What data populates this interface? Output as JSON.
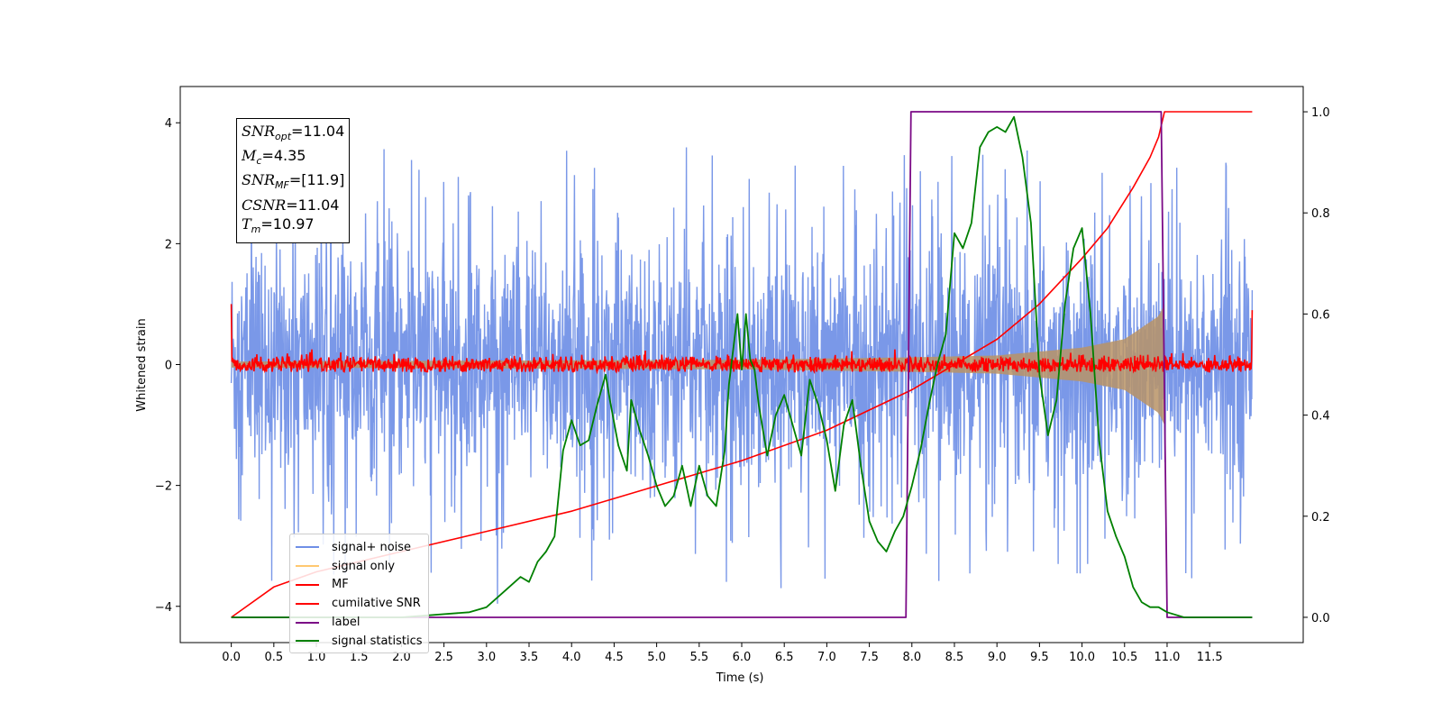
{
  "chart_data": {
    "type": "line",
    "title": "",
    "xlabel": "Time (s)",
    "ylabel": "Whitened strain",
    "xlim": [
      -0.6,
      12.6
    ],
    "ylim_left": [
      -4.6,
      4.6
    ],
    "ylim_right": [
      -0.05,
      1.05
    ],
    "xticks": [
      0.0,
      0.5,
      1.0,
      1.5,
      2.0,
      2.5,
      3.0,
      3.5,
      4.0,
      4.5,
      5.0,
      5.5,
      6.0,
      6.5,
      7.0,
      7.5,
      8.0,
      8.5,
      9.0,
      9.5,
      10.0,
      10.5,
      11.0,
      11.5
    ],
    "xtick_labels": [
      "0.0",
      "0.5",
      "1.0",
      "1.5",
      "2.0",
      "2.5",
      "3.0",
      "3.5",
      "4.0",
      "4.5",
      "5.0",
      "5.5",
      "6.0",
      "6.5",
      "7.0",
      "7.5",
      "8.0",
      "8.5",
      "9.0",
      "9.5",
      "10.0",
      "10.5",
      "11.0",
      "11.5"
    ],
    "yticks_left": [
      -4,
      -2,
      0,
      2,
      4
    ],
    "ytick_labels_left": [
      "−4",
      "−2",
      "0",
      "2",
      "4"
    ],
    "yticks_right": [
      0.0,
      0.2,
      0.4,
      0.6,
      0.8,
      1.0
    ],
    "ytick_labels_right": [
      "0.0",
      "0.2",
      "0.4",
      "0.6",
      "0.8",
      "1.0"
    ],
    "grid": false,
    "legend_position": "lower-left",
    "series": [
      {
        "name": "signal+ noise",
        "color": "#6f8fe6",
        "axis": "left",
        "style": "noise",
        "x_range": [
          0,
          12
        ],
        "amplitude_typical": 1.2,
        "amplitude_peak": 4.15
      },
      {
        "name": "signal only",
        "color": "#ffc870",
        "axis": "left",
        "style": "chirp",
        "x_range": [
          0,
          11
        ],
        "envelope": [
          [
            0,
            0.05
          ],
          [
            6,
            0.08
          ],
          [
            8,
            0.12
          ],
          [
            9,
            0.15
          ],
          [
            10,
            0.28
          ],
          [
            10.5,
            0.42
          ],
          [
            10.9,
            0.8
          ],
          [
            10.97,
            1.0
          ]
        ]
      },
      {
        "name": "MF",
        "color": "#ff0000",
        "axis": "left",
        "style": "noise",
        "x_range": [
          0,
          12
        ],
        "amplitude_typical": 0.07,
        "amplitude_peak": 0.25,
        "edge_values": [
          1.0,
          0.9
        ]
      },
      {
        "name": "cumilative SNR",
        "color": "#ff0000",
        "axis": "right",
        "x": [
          0.0,
          0.5,
          1.0,
          2.0,
          3.0,
          4.0,
          5.0,
          6.0,
          7.0,
          8.0,
          8.5,
          9.0,
          9.5,
          10.0,
          10.3,
          10.6,
          10.8,
          10.9,
          10.97,
          11.0,
          12.0
        ],
        "y": [
          0.0,
          0.06,
          0.09,
          0.13,
          0.17,
          0.21,
          0.26,
          0.31,
          0.37,
          0.45,
          0.5,
          0.55,
          0.62,
          0.71,
          0.77,
          0.85,
          0.91,
          0.95,
          1.0,
          1.0,
          1.0
        ]
      },
      {
        "name": "label",
        "color": "#7b0a86",
        "axis": "right",
        "x": [
          0.0,
          7.93,
          7.99,
          10.93,
          11.0,
          12.0
        ],
        "y": [
          0.0,
          0.0,
          1.0,
          1.0,
          0.0,
          0.0
        ]
      },
      {
        "name": "signal statistics",
        "color": "#008000",
        "axis": "right",
        "x": [
          0.0,
          2.0,
          2.8,
          3.0,
          3.2,
          3.4,
          3.5,
          3.6,
          3.7,
          3.8,
          3.9,
          4.0,
          4.1,
          4.2,
          4.3,
          4.4,
          4.45,
          4.55,
          4.65,
          4.7,
          4.8,
          4.9,
          5.0,
          5.1,
          5.2,
          5.3,
          5.4,
          5.5,
          5.6,
          5.7,
          5.8,
          5.85,
          5.95,
          6.0,
          6.05,
          6.1,
          6.15,
          6.2,
          6.3,
          6.4,
          6.5,
          6.6,
          6.7,
          6.8,
          6.9,
          7.0,
          7.1,
          7.2,
          7.3,
          7.4,
          7.5,
          7.6,
          7.7,
          7.8,
          7.9,
          8.0,
          8.1,
          8.2,
          8.3,
          8.4,
          8.5,
          8.6,
          8.7,
          8.8,
          8.9,
          9.0,
          9.1,
          9.2,
          9.3,
          9.4,
          9.5,
          9.6,
          9.7,
          9.8,
          9.9,
          10.0,
          10.1,
          10.2,
          10.3,
          10.4,
          10.5,
          10.6,
          10.7,
          10.8,
          10.9,
          11.0,
          11.2,
          12.0
        ],
        "y": [
          0.0,
          0.0,
          0.01,
          0.02,
          0.05,
          0.08,
          0.07,
          0.11,
          0.13,
          0.16,
          0.33,
          0.39,
          0.34,
          0.35,
          0.42,
          0.48,
          0.43,
          0.34,
          0.29,
          0.43,
          0.37,
          0.32,
          0.26,
          0.22,
          0.24,
          0.3,
          0.22,
          0.3,
          0.24,
          0.22,
          0.33,
          0.46,
          0.6,
          0.49,
          0.6,
          0.51,
          0.49,
          0.42,
          0.32,
          0.4,
          0.44,
          0.38,
          0.32,
          0.47,
          0.42,
          0.35,
          0.25,
          0.38,
          0.43,
          0.3,
          0.19,
          0.15,
          0.13,
          0.17,
          0.2,
          0.26,
          0.33,
          0.42,
          0.5,
          0.56,
          0.76,
          0.73,
          0.78,
          0.93,
          0.96,
          0.97,
          0.96,
          0.99,
          0.91,
          0.78,
          0.48,
          0.36,
          0.43,
          0.62,
          0.73,
          0.77,
          0.6,
          0.35,
          0.21,
          0.16,
          0.12,
          0.06,
          0.03,
          0.02,
          0.02,
          0.01,
          0.0,
          0.0
        ]
      }
    ],
    "annotations": [
      {
        "label": "SNR",
        "sub": "opt",
        "value": "=11.04"
      },
      {
        "label": "M",
        "sub": "c",
        "value": "=4.35"
      },
      {
        "label": "SNR",
        "sub": "MF",
        "value": "=[11.9]"
      },
      {
        "label": "CSNR",
        "sub": "",
        "value": "=11.04"
      },
      {
        "label": "T",
        "sub": "m",
        "value": "=10.97"
      }
    ]
  }
}
